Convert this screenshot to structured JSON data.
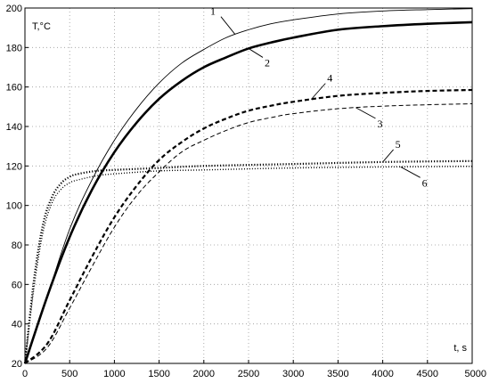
{
  "chart_data": {
    "type": "line",
    "title": "",
    "xlabel": "t, s",
    "ylabel": "T,°C",
    "xlim": [
      0,
      5000
    ],
    "ylim": [
      20,
      200
    ],
    "xticks": [
      0,
      500,
      1000,
      1500,
      2000,
      2500,
      3000,
      3500,
      4000,
      4500,
      5000
    ],
    "yticks": [
      20,
      40,
      60,
      80,
      100,
      120,
      140,
      160,
      180,
      200
    ],
    "grid": true,
    "legend": "none",
    "series": [
      {
        "name": "1",
        "style": "solid-thin",
        "x": [
          0,
          250,
          500,
          750,
          1000,
          1250,
          1500,
          1750,
          2000,
          2250,
          2500,
          2750,
          3000,
          3500,
          4000,
          4500,
          5000
        ],
        "y": [
          20,
          54,
          88,
          113,
          133,
          149,
          162,
          172,
          179,
          185,
          189,
          192,
          194,
          197,
          198.5,
          199.2,
          199.7
        ]
      },
      {
        "name": "2",
        "style": "solid-thick",
        "x": [
          0,
          250,
          500,
          750,
          1000,
          1250,
          1500,
          1750,
          2000,
          2250,
          2500,
          2750,
          3000,
          3500,
          4000,
          4500,
          5000
        ],
        "y": [
          20,
          54,
          84,
          108,
          127,
          142,
          154,
          163,
          170,
          175,
          179.5,
          182.5,
          185,
          189,
          190.8,
          192,
          192.8
        ]
      },
      {
        "name": "3",
        "style": "dashed-thin",
        "x": [
          0,
          250,
          500,
          750,
          1000,
          1250,
          1500,
          1750,
          2000,
          2250,
          2500,
          2750,
          3000,
          3500,
          4000,
          4500,
          5000
        ],
        "y": [
          20,
          28,
          48,
          69,
          89,
          105,
          117,
          127,
          133,
          138,
          142,
          144.5,
          146.5,
          149,
          150.3,
          151,
          151.5
        ]
      },
      {
        "name": "4",
        "style": "dashed-thick",
        "x": [
          0,
          250,
          500,
          750,
          1000,
          1250,
          1500,
          1750,
          2000,
          2250,
          2500,
          2750,
          3000,
          3500,
          4000,
          4500,
          5000
        ],
        "y": [
          20,
          30,
          52,
          74,
          94,
          110,
          123,
          132,
          139,
          144,
          148,
          150.5,
          152.5,
          155.5,
          157,
          158,
          158.5
        ]
      },
      {
        "name": "5",
        "style": "dotted-thick",
        "x": [
          0,
          100,
          200,
          300,
          400,
          500,
          600,
          800,
          1000,
          1500,
          2000,
          3000,
          4000,
          5000
        ],
        "y": [
          20,
          62,
          90,
          104,
          111,
          114.5,
          116,
          117.5,
          118,
          119,
          120,
          121,
          122,
          122.5
        ]
      },
      {
        "name": "6",
        "style": "dotted-thin",
        "x": [
          0,
          100,
          200,
          300,
          400,
          500,
          600,
          800,
          1000,
          1500,
          2000,
          3000,
          4000,
          5000
        ],
        "y": [
          20,
          58,
          86,
          101,
          108,
          111.5,
          113,
          115,
          116,
          117.5,
          118,
          119,
          119.5,
          119.8
        ]
      }
    ],
    "annotations": [
      {
        "text": "1",
        "series": "1",
        "at_x": 2350
      },
      {
        "text": "2",
        "series": "2",
        "at_x": 2500
      },
      {
        "text": "3",
        "series": "3",
        "at_x": 3700
      },
      {
        "text": "4",
        "series": "4",
        "at_x": 3200
      },
      {
        "text": "5",
        "series": "5",
        "at_x": 4000
      },
      {
        "text": "6",
        "series": "6",
        "at_x": 4200
      }
    ]
  }
}
